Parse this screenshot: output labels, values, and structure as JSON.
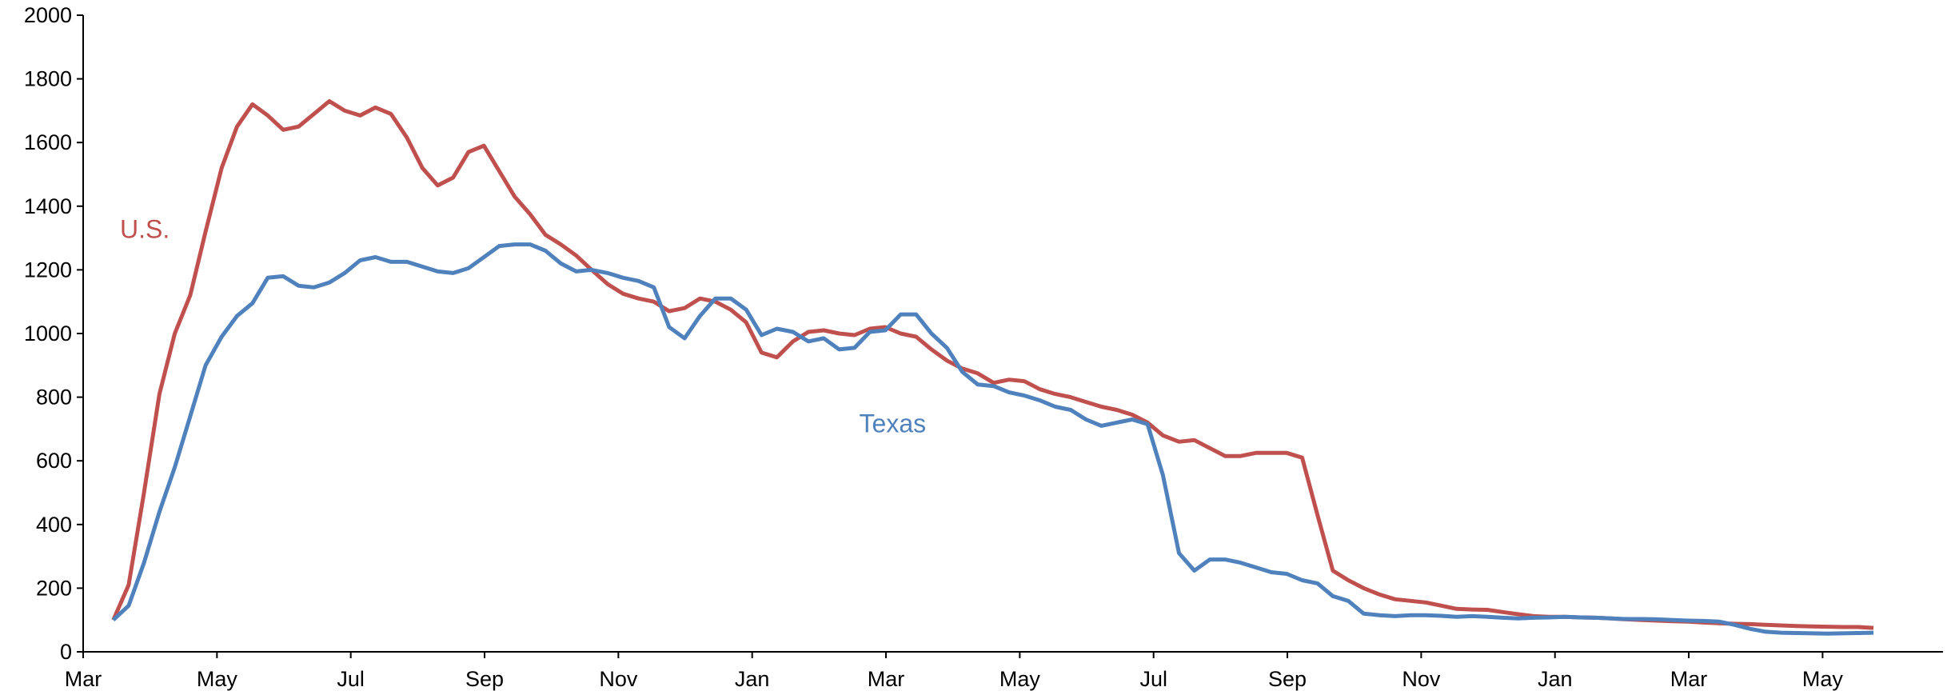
{
  "chart_data": {
    "type": "line",
    "x": [
      0.45,
      0.68,
      0.91,
      1.14,
      1.37,
      1.6,
      1.83,
      2.07,
      2.3,
      2.53,
      2.76,
      2.99,
      3.22,
      3.45,
      3.68,
      3.91,
      4.14,
      4.37,
      4.6,
      4.84,
      5.07,
      5.3,
      5.53,
      5.76,
      5.99,
      6.22,
      6.45,
      6.68,
      6.91,
      7.14,
      7.37,
      7.6,
      7.84,
      8.07,
      8.3,
      8.53,
      8.76,
      8.99,
      9.22,
      9.45,
      9.68,
      9.91,
      10.14,
      10.37,
      10.61,
      10.84,
      11.07,
      11.3,
      11.53,
      11.76,
      11.99,
      12.22,
      12.45,
      12.68,
      12.91,
      13.14,
      13.37,
      13.61,
      13.84,
      14.07,
      14.3,
      14.53,
      14.76,
      14.99,
      15.22,
      15.45,
      15.68,
      15.91,
      16.14,
      16.38,
      16.61,
      16.84,
      17.07,
      17.3,
      17.53,
      17.76,
      17.99,
      18.22,
      18.45,
      18.68,
      18.91,
      19.14,
      19.38,
      19.61,
      19.84,
      20.07,
      20.3,
      20.53,
      20.76,
      20.99,
      21.22,
      21.45,
      21.68,
      21.91,
      22.15,
      22.38,
      22.61,
      22.84,
      23.07,
      23.3,
      23.53,
      23.76,
      23.99,
      24.22,
      24.45,
      24.68,
      24.92,
      25.15,
      25.38,
      25.61,
      25.84,
      26.07,
      26.3,
      26.53,
      26.76
    ],
    "series": [
      {
        "name": "U.S.",
        "color": "#c0504d",
        "values": [
          100,
          210,
          500,
          810,
          1000,
          1120,
          1320,
          1520,
          1650,
          1720,
          1685,
          1640,
          1650,
          1690,
          1730,
          1700,
          1685,
          1710,
          1690,
          1615,
          1520,
          1465,
          1490,
          1570,
          1590,
          1510,
          1430,
          1375,
          1310,
          1280,
          1245,
          1200,
          1155,
          1125,
          1110,
          1100,
          1070,
          1080,
          1110,
          1100,
          1075,
          1035,
          940,
          925,
          975,
          1005,
          1010,
          1000,
          995,
          1015,
          1020,
          1000,
          990,
          950,
          915,
          890,
          875,
          845,
          855,
          850,
          825,
          810,
          800,
          785,
          770,
          760,
          745,
          720,
          680,
          660,
          665,
          640,
          615,
          615,
          625,
          625,
          625,
          610,
          430,
          255,
          225,
          200,
          180,
          165,
          160,
          155,
          145,
          135,
          133,
          132,
          125,
          118,
          112,
          110,
          110,
          108,
          107,
          105,
          102,
          100,
          98,
          96,
          95,
          92,
          90,
          88,
          87,
          85,
          83,
          81,
          80,
          79,
          78,
          78,
          75
        ]
      },
      {
        "name": "Texas",
        "color": "#4f81bd",
        "values": [
          100,
          145,
          280,
          440,
          580,
          740,
          900,
          990,
          1055,
          1095,
          1175,
          1180,
          1150,
          1145,
          1160,
          1190,
          1230,
          1240,
          1225,
          1225,
          1210,
          1195,
          1190,
          1205,
          1240,
          1275,
          1280,
          1280,
          1260,
          1220,
          1195,
          1200,
          1190,
          1175,
          1165,
          1145,
          1020,
          985,
          1055,
          1110,
          1110,
          1075,
          995,
          1015,
          1005,
          975,
          985,
          950,
          955,
          1005,
          1010,
          1060,
          1060,
          1000,
          955,
          880,
          840,
          835,
          815,
          805,
          790,
          770,
          760,
          730,
          710,
          720,
          730,
          715,
          555,
          310,
          255,
          290,
          290,
          280,
          265,
          250,
          245,
          225,
          215,
          175,
          160,
          120,
          115,
          112,
          115,
          115,
          113,
          110,
          112,
          110,
          107,
          105,
          107,
          108,
          110,
          108,
          107,
          105,
          103,
          103,
          102,
          100,
          98,
          97,
          95,
          85,
          72,
          63,
          60,
          59,
          58,
          57,
          58,
          59,
          60
        ]
      }
    ],
    "xlim": [
      0,
      27.8
    ],
    "xticks": [
      {
        "value": 0,
        "label": "Mar"
      },
      {
        "value": 2,
        "label": "May"
      },
      {
        "value": 4,
        "label": "Jul"
      },
      {
        "value": 6,
        "label": "Sep"
      },
      {
        "value": 8,
        "label": "Nov"
      },
      {
        "value": 10,
        "label": "Jan"
      },
      {
        "value": 12,
        "label": "Mar"
      },
      {
        "value": 14,
        "label": "May"
      },
      {
        "value": 16,
        "label": "Jul"
      },
      {
        "value": 18,
        "label": "Sep"
      },
      {
        "value": 20,
        "label": "Nov"
      },
      {
        "value": 22,
        "label": "Jan"
      },
      {
        "value": 24,
        "label": "Mar"
      },
      {
        "value": 26,
        "label": "May"
      }
    ],
    "ylim": [
      0,
      2000
    ],
    "yticks": [
      0,
      200,
      400,
      600,
      800,
      1000,
      1200,
      1400,
      1600,
      1800,
      2000
    ],
    "grid": false
  }
}
